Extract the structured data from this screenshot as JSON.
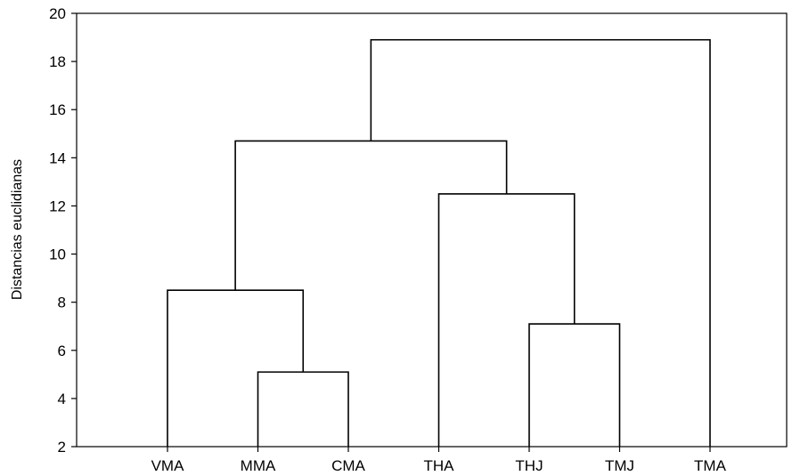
{
  "chart_data": {
    "type": "dendrogram",
    "title": "",
    "xlabel": "",
    "ylabel": "Distancias euclidianas",
    "ylim": [
      2,
      20
    ],
    "yticks": [
      2,
      4,
      6,
      8,
      10,
      12,
      14,
      16,
      18,
      20
    ],
    "leaves": [
      "VMA",
      "MMA",
      "CMA",
      "THA",
      "THJ",
      "TMJ",
      "TMA"
    ],
    "merges": [
      {
        "left": "MMA",
        "right": "CMA",
        "height": 5.1
      },
      {
        "left": "THJ",
        "right": "TMJ",
        "height": 7.1
      },
      {
        "left": "VMA",
        "right": "MMA+CMA",
        "height": 8.5
      },
      {
        "left": "THA",
        "right": "THJ+TMJ",
        "height": 12.5
      },
      {
        "left": "VMA+MMA+CMA",
        "right": "THA+THJ+TMJ",
        "height": 14.7
      },
      {
        "left": "VMA+MMA+CMA+THA+THJ+TMJ",
        "right": "TMA",
        "height": 18.9
      }
    ],
    "grid": false,
    "legend": "none"
  }
}
